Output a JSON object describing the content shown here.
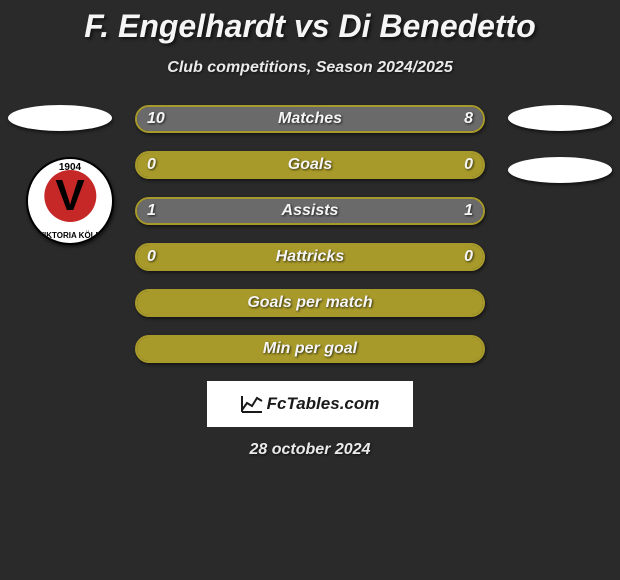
{
  "title": "F. Engelhardt vs Di Benedetto",
  "subtitle": "Club competitions, Season 2024/2025",
  "logo": {
    "year": "1904",
    "letter": "V",
    "arc": "VIKTORIA KÖLN"
  },
  "colors": {
    "left_fill": "#6a6a6a",
    "right_fill": "#6a6a6a",
    "full_fill": "#a89a2a",
    "border": "#a89a2a",
    "bg": "#2a2a2a"
  },
  "bars": [
    {
      "label": "Matches",
      "left": "10",
      "right": "8",
      "left_pct": 55,
      "right_pct": 45,
      "style": "split"
    },
    {
      "label": "Goals",
      "left": "0",
      "right": "0",
      "left_pct": 0,
      "right_pct": 0,
      "style": "full"
    },
    {
      "label": "Assists",
      "left": "1",
      "right": "1",
      "left_pct": 50,
      "right_pct": 50,
      "style": "split"
    },
    {
      "label": "Hattricks",
      "left": "0",
      "right": "0",
      "left_pct": 0,
      "right_pct": 0,
      "style": "full"
    },
    {
      "label": "Goals per match",
      "left": "",
      "right": "",
      "left_pct": 0,
      "right_pct": 0,
      "style": "full"
    },
    {
      "label": "Min per goal",
      "left": "",
      "right": "",
      "left_pct": 0,
      "right_pct": 0,
      "style": "full"
    }
  ],
  "footer": {
    "brand": "FcTables.com",
    "date": "28 october 2024"
  }
}
